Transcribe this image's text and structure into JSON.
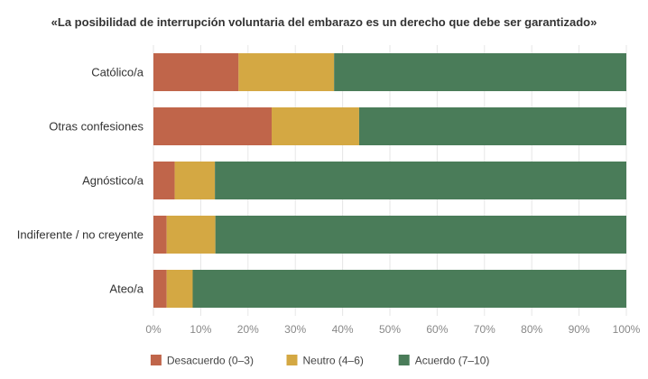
{
  "chart_data": {
    "type": "bar",
    "orientation": "horizontal",
    "stacked": true,
    "title": "«La posibilidad de interrupción voluntaria del embarazo es un derecho que debe ser garantizado»",
    "categories": [
      "Católico/a",
      "Otras confesiones",
      "Agnóstico/a",
      "Indiferente / no creyente",
      "Ateo/a"
    ],
    "series": [
      {
        "name": "Desacuerdo (0–3)",
        "color": "#c0654a",
        "values": [
          18,
          25,
          4.5,
          2.8,
          2.8
        ]
      },
      {
        "name": "Neutro (4–6)",
        "color": "#d4a843",
        "values": [
          20.2,
          18.5,
          8.5,
          10.3,
          5.5
        ]
      },
      {
        "name": "Acuerdo (7–10)",
        "color": "#4a7c59",
        "values": [
          61.8,
          56.5,
          87,
          86.9,
          91.7
        ]
      }
    ],
    "xlim": [
      0,
      100
    ],
    "xticks": [
      "0%",
      "10%",
      "20%",
      "30%",
      "40%",
      "50%",
      "60%",
      "70%",
      "80%",
      "90%",
      "100%"
    ],
    "grid": true,
    "legend_position": "bottom"
  }
}
